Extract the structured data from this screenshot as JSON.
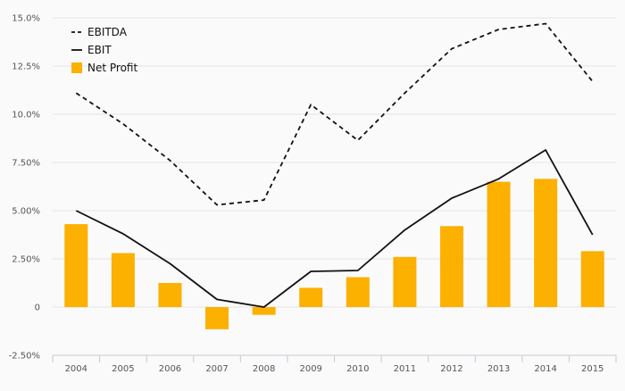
{
  "chart_data": {
    "type": "bar",
    "categories": [
      "2004",
      "2005",
      "2006",
      "2007",
      "2008",
      "2009",
      "2010",
      "2011",
      "2012",
      "2013",
      "2014",
      "2015"
    ],
    "y_ticks": [
      "-2.50%",
      "0",
      "2.50%",
      "5.00%",
      "7.50%",
      "10.0%",
      "12.5%",
      "15.0%"
    ],
    "ylim": [
      -2.5,
      15
    ],
    "grid": true,
    "legend_position": "top-left",
    "series": [
      {
        "name": "EBITDA",
        "type": "line",
        "style": "dashed",
        "color": "#111111",
        "values": [
          11.1,
          9.5,
          7.6,
          5.3,
          5.55,
          10.5,
          8.65,
          11.1,
          13.4,
          14.4,
          14.7,
          11.7
        ]
      },
      {
        "name": "EBIT",
        "type": "line",
        "style": "solid",
        "color": "#111111",
        "values": [
          5.0,
          3.8,
          2.25,
          0.4,
          0.0,
          1.85,
          1.9,
          4.0,
          5.65,
          6.65,
          8.15,
          3.75
        ]
      },
      {
        "name": "Net Profit",
        "type": "bar",
        "color": "#fcb000",
        "values": [
          4.3,
          2.8,
          1.25,
          -1.15,
          -0.4,
          1.0,
          1.55,
          2.6,
          4.2,
          6.5,
          6.65,
          2.9
        ]
      }
    ]
  }
}
